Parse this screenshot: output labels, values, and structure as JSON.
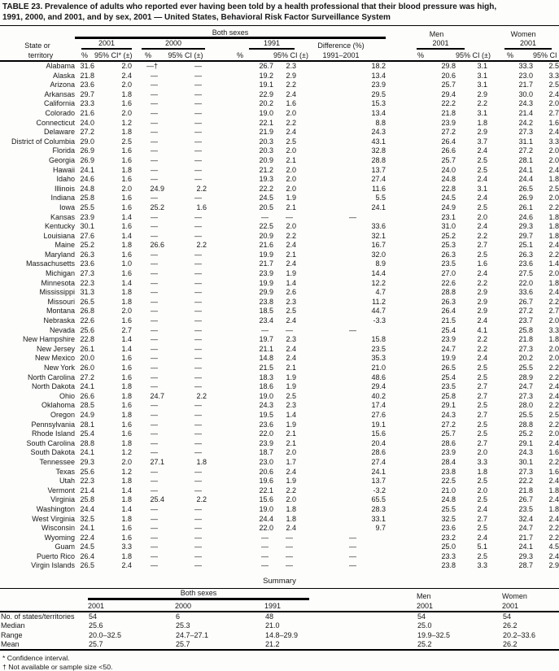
{
  "title_line1": "TABLE 23. Prevalence of adults who reported ever having been told by a health professional that their blood pressure was high,",
  "title_line2": "1991, 2000, and 2001, and by sex, 2001 — United States, Behavioral Risk Factor Surveillance System",
  "table": {
    "group_both": "Both sexes",
    "group_men": "Men",
    "group_women": "Women",
    "year_2001": "2001",
    "year_2000": "2000",
    "year_1991": "1991",
    "year_men": "2001",
    "year_women": "2001",
    "stub_line1": "State or",
    "stub_line2": "territory",
    "diff_line1": "Difference (%)",
    "diff_line2": "1991–2001",
    "pct_header": "%",
    "ci_header_star": "95% CI* (±)",
    "ci_header": "95% CI (±)",
    "rows": [
      [
        "Alabama",
        "31.6",
        "2.0",
        "—†",
        "—",
        "26.7",
        "2.3",
        "18.2",
        "29.8",
        "3.1",
        "33.3",
        "2.5"
      ],
      [
        "Alaska",
        "21.8",
        "2.4",
        "—",
        "—",
        "19.2",
        "2.9",
        "13.4",
        "20.6",
        "3.1",
        "23.0",
        "3.3"
      ],
      [
        "Arizona",
        "23.6",
        "2.0",
        "—",
        "—",
        "19.1",
        "2.2",
        "23.9",
        "25.7",
        "3.1",
        "21.7",
        "2.5"
      ],
      [
        "Arkansas",
        "29.7",
        "1.8",
        "—",
        "—",
        "22.9",
        "2.4",
        "29.5",
        "29.4",
        "2.9",
        "30.0",
        "2.4"
      ],
      [
        "California",
        "23.3",
        "1.6",
        "—",
        "—",
        "20.2",
        "1.6",
        "15.3",
        "22.2",
        "2.2",
        "24.3",
        "2.0"
      ],
      [
        "Colorado",
        "21.6",
        "2.0",
        "—",
        "—",
        "19.0",
        "2.0",
        "13.4",
        "21.8",
        "3.1",
        "21.4",
        "2.7"
      ],
      [
        "Connecticut",
        "24.0",
        "1.2",
        "—",
        "—",
        "22.1",
        "2.2",
        "8.8",
        "23.9",
        "1.8",
        "24.2",
        "1.6"
      ],
      [
        "Delaware",
        "27.2",
        "1.8",
        "—",
        "—",
        "21.9",
        "2.4",
        "24.3",
        "27.2",
        "2.9",
        "27.3",
        "2.4"
      ],
      [
        "District of Columbia",
        "29.0",
        "2.5",
        "—",
        "—",
        "20.3",
        "2.5",
        "43.1",
        "26.4",
        "3.7",
        "31.1",
        "3.3"
      ],
      [
        "Florida",
        "26.9",
        "1.6",
        "—",
        "—",
        "20.3",
        "2.0",
        "32.8",
        "26.6",
        "2.4",
        "27.2",
        "2.0"
      ],
      [
        "Georgia",
        "26.9",
        "1.6",
        "—",
        "—",
        "20.9",
        "2.1",
        "28.8",
        "25.7",
        "2.5",
        "28.1",
        "2.0"
      ],
      [
        "Hawaii",
        "24.1",
        "1.8",
        "—",
        "—",
        "21.2",
        "2.0",
        "13.7",
        "24.0",
        "2.5",
        "24.1",
        "2.4"
      ],
      [
        "Idaho",
        "24.6",
        "1.6",
        "—",
        "—",
        "19.3",
        "2.0",
        "27.4",
        "24.8",
        "2.4",
        "24.4",
        "1.8"
      ],
      [
        "Illinois",
        "24.8",
        "2.0",
        "24.9",
        "2.2",
        "22.2",
        "2.0",
        "11.6",
        "22.8",
        "3.1",
        "26.5",
        "2.5"
      ],
      [
        "Indiana",
        "25.8",
        "1.6",
        "—",
        "—",
        "24.5",
        "1.9",
        "5.5",
        "24.5",
        "2.4",
        "26.9",
        "2.0"
      ],
      [
        "Iowa",
        "25.5",
        "1.6",
        "25.2",
        "1.6",
        "20.5",
        "2.1",
        "24.1",
        "24.9",
        "2.5",
        "26.1",
        "2.2"
      ],
      [
        "Kansas",
        "23.9",
        "1.4",
        "—",
        "—",
        "—",
        "—",
        "—",
        "23.1",
        "2.0",
        "24.6",
        "1.8"
      ],
      [
        "Kentucky",
        "30.1",
        "1.6",
        "—",
        "—",
        "22.5",
        "2.0",
        "33.6",
        "31.0",
        "2.4",
        "29.3",
        "1.8"
      ],
      [
        "Louisiana",
        "27.6",
        "1.4",
        "—",
        "—",
        "20.9",
        "2.2",
        "32.1",
        "25.2",
        "2.2",
        "29.7",
        "1.8"
      ],
      [
        "Maine",
        "25.2",
        "1.8",
        "26.6",
        "2.2",
        "21.6",
        "2.4",
        "16.7",
        "25.3",
        "2.7",
        "25.1",
        "2.4"
      ],
      [
        "Maryland",
        "26.3",
        "1.6",
        "—",
        "—",
        "19.9",
        "2.1",
        "32.0",
        "26.3",
        "2.5",
        "26.3",
        "2.2"
      ],
      [
        "Massachusetts",
        "23.6",
        "1.0",
        "—",
        "—",
        "21.7",
        "2.4",
        "8.9",
        "23.5",
        "1.6",
        "23.6",
        "1.4"
      ],
      [
        "Michigan",
        "27.3",
        "1.6",
        "—",
        "—",
        "23.9",
        "1.9",
        "14.4",
        "27.0",
        "2.4",
        "27.5",
        "2.0"
      ],
      [
        "Minnesota",
        "22.3",
        "1.4",
        "—",
        "—",
        "19.9",
        "1.4",
        "12.2",
        "22.6",
        "2.2",
        "22.0",
        "1.8"
      ],
      [
        "Mississippi",
        "31.3",
        "1.8",
        "—",
        "—",
        "29.9",
        "2.6",
        "4.7",
        "28.8",
        "2.9",
        "33.6",
        "2.4"
      ],
      [
        "Missouri",
        "26.5",
        "1.8",
        "—",
        "—",
        "23.8",
        "2.3",
        "11.2",
        "26.3",
        "2.9",
        "26.7",
        "2.2"
      ],
      [
        "Montana",
        "26.8",
        "2.0",
        "—",
        "—",
        "18.5",
        "2.5",
        "44.7",
        "26.4",
        "2.9",
        "27.2",
        "2.7"
      ],
      [
        "Nebraska",
        "22.6",
        "1.6",
        "—",
        "—",
        "23.4",
        "2.4",
        "-3.3",
        "21.5",
        "2.4",
        "23.7",
        "2.0"
      ],
      [
        "Nevada",
        "25.6",
        "2.7",
        "—",
        "—",
        "—",
        "—",
        "—",
        "25.4",
        "4.1",
        "25.8",
        "3.3"
      ],
      [
        "New Hampshire",
        "22.8",
        "1.4",
        "—",
        "—",
        "19.7",
        "2.3",
        "15.8",
        "23.9",
        "2.2",
        "21.8",
        "1.8"
      ],
      [
        "New Jersey",
        "26.1",
        "1.4",
        "—",
        "—",
        "21.1",
        "2.4",
        "23.5",
        "24.7",
        "2.2",
        "27.3",
        "2.0"
      ],
      [
        "New Mexico",
        "20.0",
        "1.6",
        "—",
        "—",
        "14.8",
        "2.4",
        "35.3",
        "19.9",
        "2.4",
        "20.2",
        "2.0"
      ],
      [
        "New York",
        "26.0",
        "1.6",
        "—",
        "—",
        "21.5",
        "2.1",
        "21.0",
        "26.5",
        "2.5",
        "25.5",
        "2.2"
      ],
      [
        "North Carolina",
        "27.2",
        "1.6",
        "—",
        "—",
        "18.3",
        "1.9",
        "48.6",
        "25.4",
        "2.5",
        "28.9",
        "2.2"
      ],
      [
        "North Dakota",
        "24.1",
        "1.8",
        "—",
        "—",
        "18.6",
        "1.9",
        "29.4",
        "23.5",
        "2.7",
        "24.7",
        "2.4"
      ],
      [
        "Ohio",
        "26.6",
        "1.8",
        "24.7",
        "2.2",
        "19.0",
        "2.5",
        "40.2",
        "25.8",
        "2.7",
        "27.3",
        "2.4"
      ],
      [
        "Oklahoma",
        "28.5",
        "1.6",
        "—",
        "—",
        "24.3",
        "2.3",
        "17.4",
        "29.1",
        "2.5",
        "28.0",
        "2.2"
      ],
      [
        "Oregon",
        "24.9",
        "1.8",
        "—",
        "—",
        "19.5",
        "1.4",
        "27.6",
        "24.3",
        "2.7",
        "25.5",
        "2.5"
      ],
      [
        "Pennsylvania",
        "28.1",
        "1.6",
        "—",
        "—",
        "23.6",
        "1.9",
        "19.1",
        "27.2",
        "2.5",
        "28.8",
        "2.2"
      ],
      [
        "Rhode Island",
        "25.4",
        "1.6",
        "—",
        "—",
        "22.0",
        "2.1",
        "15.6",
        "25.7",
        "2.5",
        "25.2",
        "2.0"
      ],
      [
        "South Carolina",
        "28.8",
        "1.8",
        "—",
        "—",
        "23.9",
        "2.1",
        "20.4",
        "28.6",
        "2.7",
        "29.1",
        "2.4"
      ],
      [
        "South Dakota",
        "24.1",
        "1.2",
        "—",
        "—",
        "18.7",
        "2.0",
        "28.6",
        "23.9",
        "2.0",
        "24.3",
        "1.6"
      ],
      [
        "Tennessee",
        "29.3",
        "2.0",
        "27.1",
        "1.8",
        "23.0",
        "1.7",
        "27.4",
        "28.4",
        "3.3",
        "30.1",
        "2.2"
      ],
      [
        "Texas",
        "25.6",
        "1.2",
        "—",
        "—",
        "20.6",
        "2.4",
        "24.1",
        "23.8",
        "1.8",
        "27.3",
        "1.6"
      ],
      [
        "Utah",
        "22.3",
        "1.8",
        "—",
        "—",
        "19.6",
        "1.9",
        "13.7",
        "22.5",
        "2.5",
        "22.2",
        "2.4"
      ],
      [
        "Vermont",
        "21.4",
        "1.4",
        "—",
        "—",
        "22.1",
        "2.2",
        "-3.2",
        "21.0",
        "2.0",
        "21.8",
        "1.8"
      ],
      [
        "Virginia",
        "25.8",
        "1.8",
        "25.4",
        "2.2",
        "15.6",
        "2.0",
        "65.5",
        "24.8",
        "2.5",
        "26.7",
        "2.4"
      ],
      [
        "Washington",
        "24.4",
        "1.4",
        "—",
        "—",
        "19.0",
        "1.8",
        "28.3",
        "25.5",
        "2.4",
        "23.5",
        "1.8"
      ],
      [
        "West Virginia",
        "32.5",
        "1.8",
        "—",
        "—",
        "24.4",
        "1.8",
        "33.1",
        "32.5",
        "2.7",
        "32.4",
        "2.4"
      ],
      [
        "Wisconsin",
        "24.1",
        "1.6",
        "—",
        "—",
        "22.0",
        "2.4",
        "9.7",
        "23.6",
        "2.5",
        "24.7",
        "2.2"
      ],
      [
        "Wyoming",
        "22.4",
        "1.6",
        "—",
        "—",
        "—",
        "—",
        "—",
        "23.2",
        "2.4",
        "21.7",
        "2.2"
      ],
      [
        "Guam",
        "24.5",
        "3.3",
        "—",
        "—",
        "—",
        "—",
        "—",
        "25.0",
        "5.1",
        "24.1",
        "4.5"
      ],
      [
        "Puerto Rico",
        "26.4",
        "1.8",
        "—",
        "—",
        "—",
        "—",
        "—",
        "23.3",
        "2.5",
        "29.3",
        "2.4"
      ],
      [
        "Virgin Islands",
        "26.5",
        "2.4",
        "—",
        "—",
        "—",
        "—",
        "—",
        "23.8",
        "3.3",
        "28.7",
        "2.9"
      ]
    ]
  },
  "summary": {
    "heading": "Summary",
    "group_both": "Both sexes",
    "group_men": "Men",
    "group_women": "Women",
    "year_2001": "2001",
    "year_2000": "2000",
    "year_1991": "1991",
    "year_men": "2001",
    "year_women": "2001",
    "rows": [
      [
        "No. of states/territories",
        "54",
        "6",
        "48",
        "54",
        "54"
      ],
      [
        "Median",
        "25.6",
        "25.3",
        "21.0",
        "25.0",
        "26.2"
      ],
      [
        "Range",
        "20.0–32.5",
        "24.7–27.1",
        "14.8–29.9",
        "19.9–32.5",
        "20.2–33.6"
      ],
      [
        "Mean",
        "25.7",
        "25.7",
        "21.2",
        "25.2",
        "26.2"
      ]
    ]
  },
  "footnotes": [
    "* Confidence interval.",
    "† Not available or sample size <50."
  ]
}
